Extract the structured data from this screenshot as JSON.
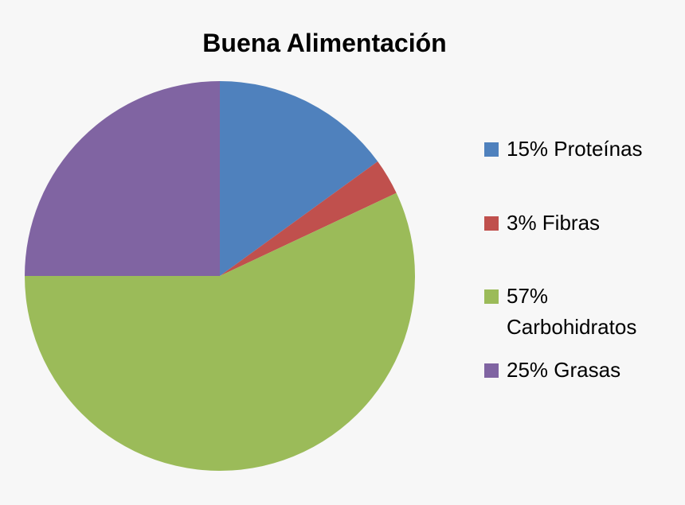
{
  "chart_data": {
    "type": "pie",
    "title": "Buena Alimentación",
    "categories": [
      "15% Proteínas",
      "3% Fibras",
      "57% Carbohidratos",
      "25% Grasas"
    ],
    "values": [
      15,
      3,
      57,
      25
    ],
    "colors": [
      "#4f81bd",
      "#c0504d",
      "#9bbb59",
      "#8064a2"
    ]
  }
}
